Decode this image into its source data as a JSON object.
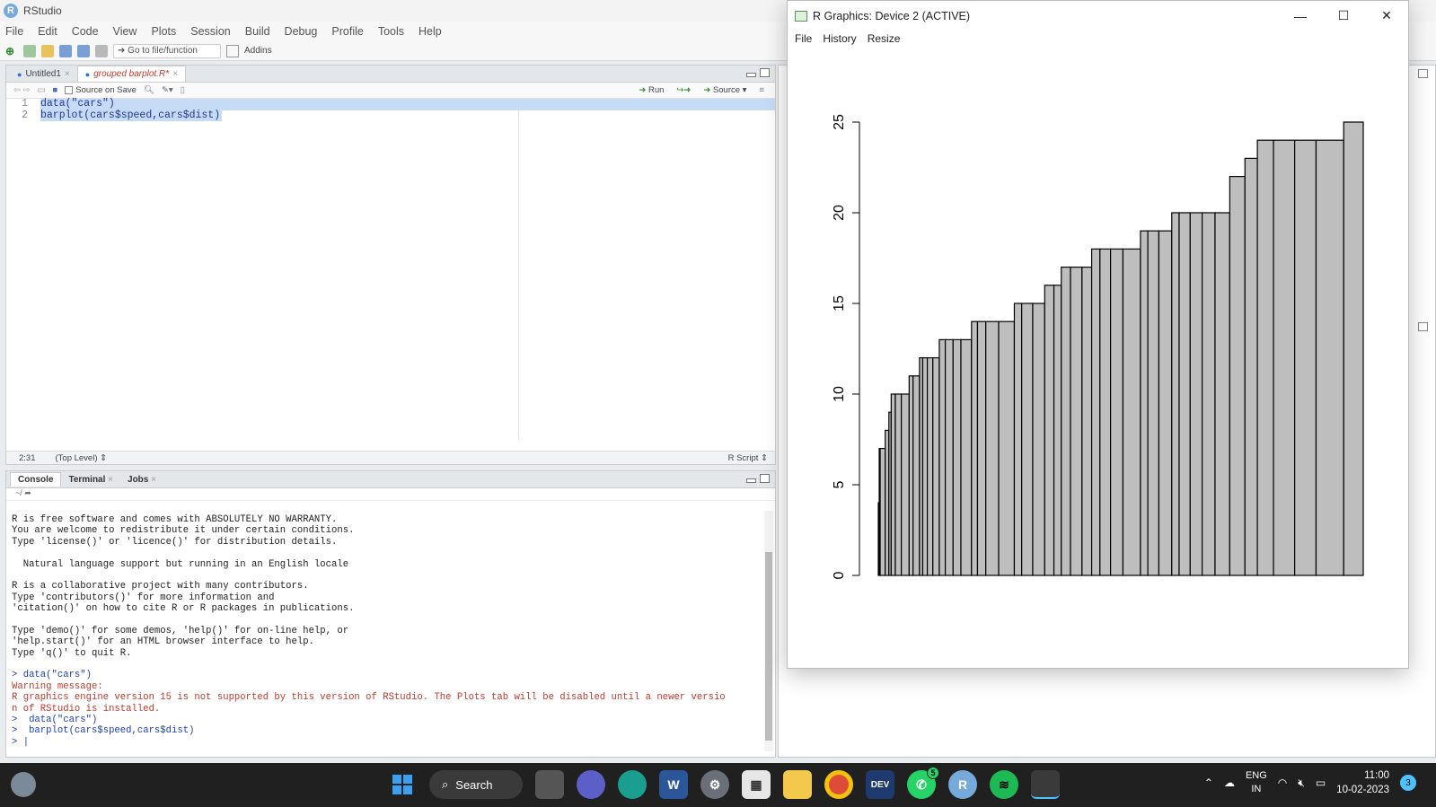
{
  "app": {
    "title": "RStudio"
  },
  "menu": [
    "File",
    "Edit",
    "Code",
    "View",
    "Plots",
    "Session",
    "Build",
    "Debug",
    "Profile",
    "Tools",
    "Help"
  ],
  "toolbar": {
    "goto_placeholder": "Go to file/function",
    "addins": "Addins"
  },
  "source": {
    "tabs": [
      {
        "label": "Untitled1",
        "active": false
      },
      {
        "label": "grouped barplot.R*",
        "active": true
      }
    ],
    "source_on_save": "Source on Save",
    "run": "Run",
    "source_btn": "Source",
    "lines": [
      {
        "num": "1",
        "text": "data(\"cars\")"
      },
      {
        "num": "2",
        "text": "barplot(cars$speed,cars$dist)"
      }
    ],
    "status": {
      "position": "2:31",
      "scope": "(Top Level)",
      "type": "R Script"
    }
  },
  "console": {
    "tabs": [
      "Console",
      "Terminal",
      "Jobs"
    ],
    "path": "~/",
    "lines": [
      {
        "t": "R is free software and comes with ABSOLUTELY NO WARRANTY.",
        "c": ""
      },
      {
        "t": "You are welcome to redistribute it under certain conditions.",
        "c": ""
      },
      {
        "t": "Type 'license()' or 'licence()' for distribution details.",
        "c": ""
      },
      {
        "t": "",
        "c": ""
      },
      {
        "t": "  Natural language support but running in an English locale",
        "c": ""
      },
      {
        "t": "",
        "c": ""
      },
      {
        "t": "R is a collaborative project with many contributors.",
        "c": ""
      },
      {
        "t": "Type 'contributors()' for more information and",
        "c": ""
      },
      {
        "t": "'citation()' on how to cite R or R packages in publications.",
        "c": ""
      },
      {
        "t": "",
        "c": ""
      },
      {
        "t": "Type 'demo()' for some demos, 'help()' for on-line help, or",
        "c": ""
      },
      {
        "t": "'help.start()' for an HTML browser interface to help.",
        "c": ""
      },
      {
        "t": "Type 'q()' to quit R.",
        "c": ""
      },
      {
        "t": "",
        "c": ""
      },
      {
        "t": "> data(\"cars\")",
        "c": "blue"
      },
      {
        "t": "Warning message:",
        "c": "red"
      },
      {
        "t": "R graphics engine version 15 is not supported by this version of RStudio. The Plots tab will be disabled until a newer versio",
        "c": "red"
      },
      {
        "t": "n of RStudio is installed.",
        "c": "red"
      },
      {
        "t": ">  data(\"cars\")",
        "c": "blue"
      },
      {
        "t": ">  barplot(cars$speed,cars$dist)",
        "c": "blue"
      },
      {
        "t": "> |",
        "c": "blue"
      }
    ]
  },
  "graphics": {
    "title": "R Graphics: Device 2 (ACTIVE)",
    "menu": [
      "File",
      "History",
      "Resize"
    ]
  },
  "chart_data": {
    "type": "bar",
    "values": [
      4,
      4,
      7,
      7,
      8,
      9,
      10,
      10,
      10,
      11,
      11,
      12,
      12,
      12,
      12,
      13,
      13,
      13,
      13,
      14,
      14,
      14,
      14,
      15,
      15,
      15,
      16,
      16,
      17,
      17,
      17,
      18,
      18,
      18,
      18,
      19,
      19,
      19,
      20,
      20,
      20,
      20,
      20,
      22,
      23,
      24,
      24,
      24,
      24,
      25
    ],
    "widths": [
      2,
      2,
      4,
      22,
      16,
      10,
      18,
      26,
      34,
      17,
      28,
      14,
      20,
      24,
      28,
      26,
      34,
      34,
      46,
      26,
      36,
      56,
      68,
      32,
      48,
      52,
      40,
      32,
      40,
      50,
      42,
      36,
      46,
      54,
      76,
      32,
      48,
      56,
      32,
      48,
      52,
      56,
      64,
      66,
      54,
      70,
      92,
      93,
      120,
      85
    ],
    "yticks": [
      "0",
      "5",
      "10",
      "15",
      "20",
      "25"
    ],
    "ylim": [
      0,
      25
    ],
    "bar_color": "#bebebe"
  },
  "taskbar": {
    "search": "Search",
    "lang1": "ENG",
    "lang2": "IN",
    "time": "11:00",
    "date": "10-02-2023",
    "notifications": "3",
    "whatsapp_badge": "5"
  }
}
